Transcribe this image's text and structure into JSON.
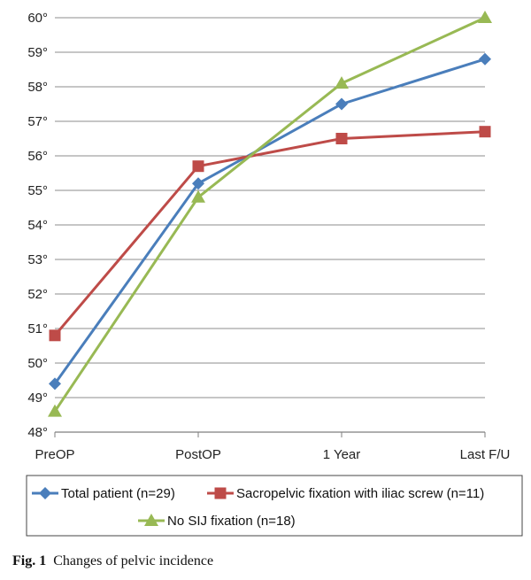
{
  "chart_data": {
    "type": "line",
    "categories": [
      "PreOP",
      "PostOP",
      "1 Year",
      "Last F/U"
    ],
    "y_ticks": [
      "48°",
      "49°",
      "50°",
      "51°",
      "52°",
      "53°",
      "54°",
      "55°",
      "56°",
      "57°",
      "58°",
      "59°",
      "60°"
    ],
    "ylim": [
      48,
      60
    ],
    "grid": true,
    "legend_placement": "bottom",
    "series": [
      {
        "name": "Total patient (n=29)",
        "values": [
          49.4,
          55.2,
          57.5,
          58.8
        ],
        "color": "#4a7ebb",
        "marker": "diamond"
      },
      {
        "name": "Sacropelvic fixation with iliac screw (n=11)",
        "values": [
          50.8,
          55.7,
          56.5,
          56.7
        ],
        "color": "#be4b48",
        "marker": "square"
      },
      {
        "name": "No SIJ fixation (n=18)",
        "values": [
          48.6,
          54.8,
          58.1,
          60.0
        ],
        "color": "#98b954",
        "marker": "triangle"
      }
    ]
  },
  "caption": {
    "label": "Fig. 1",
    "text": "Changes of pelvic incidence"
  }
}
